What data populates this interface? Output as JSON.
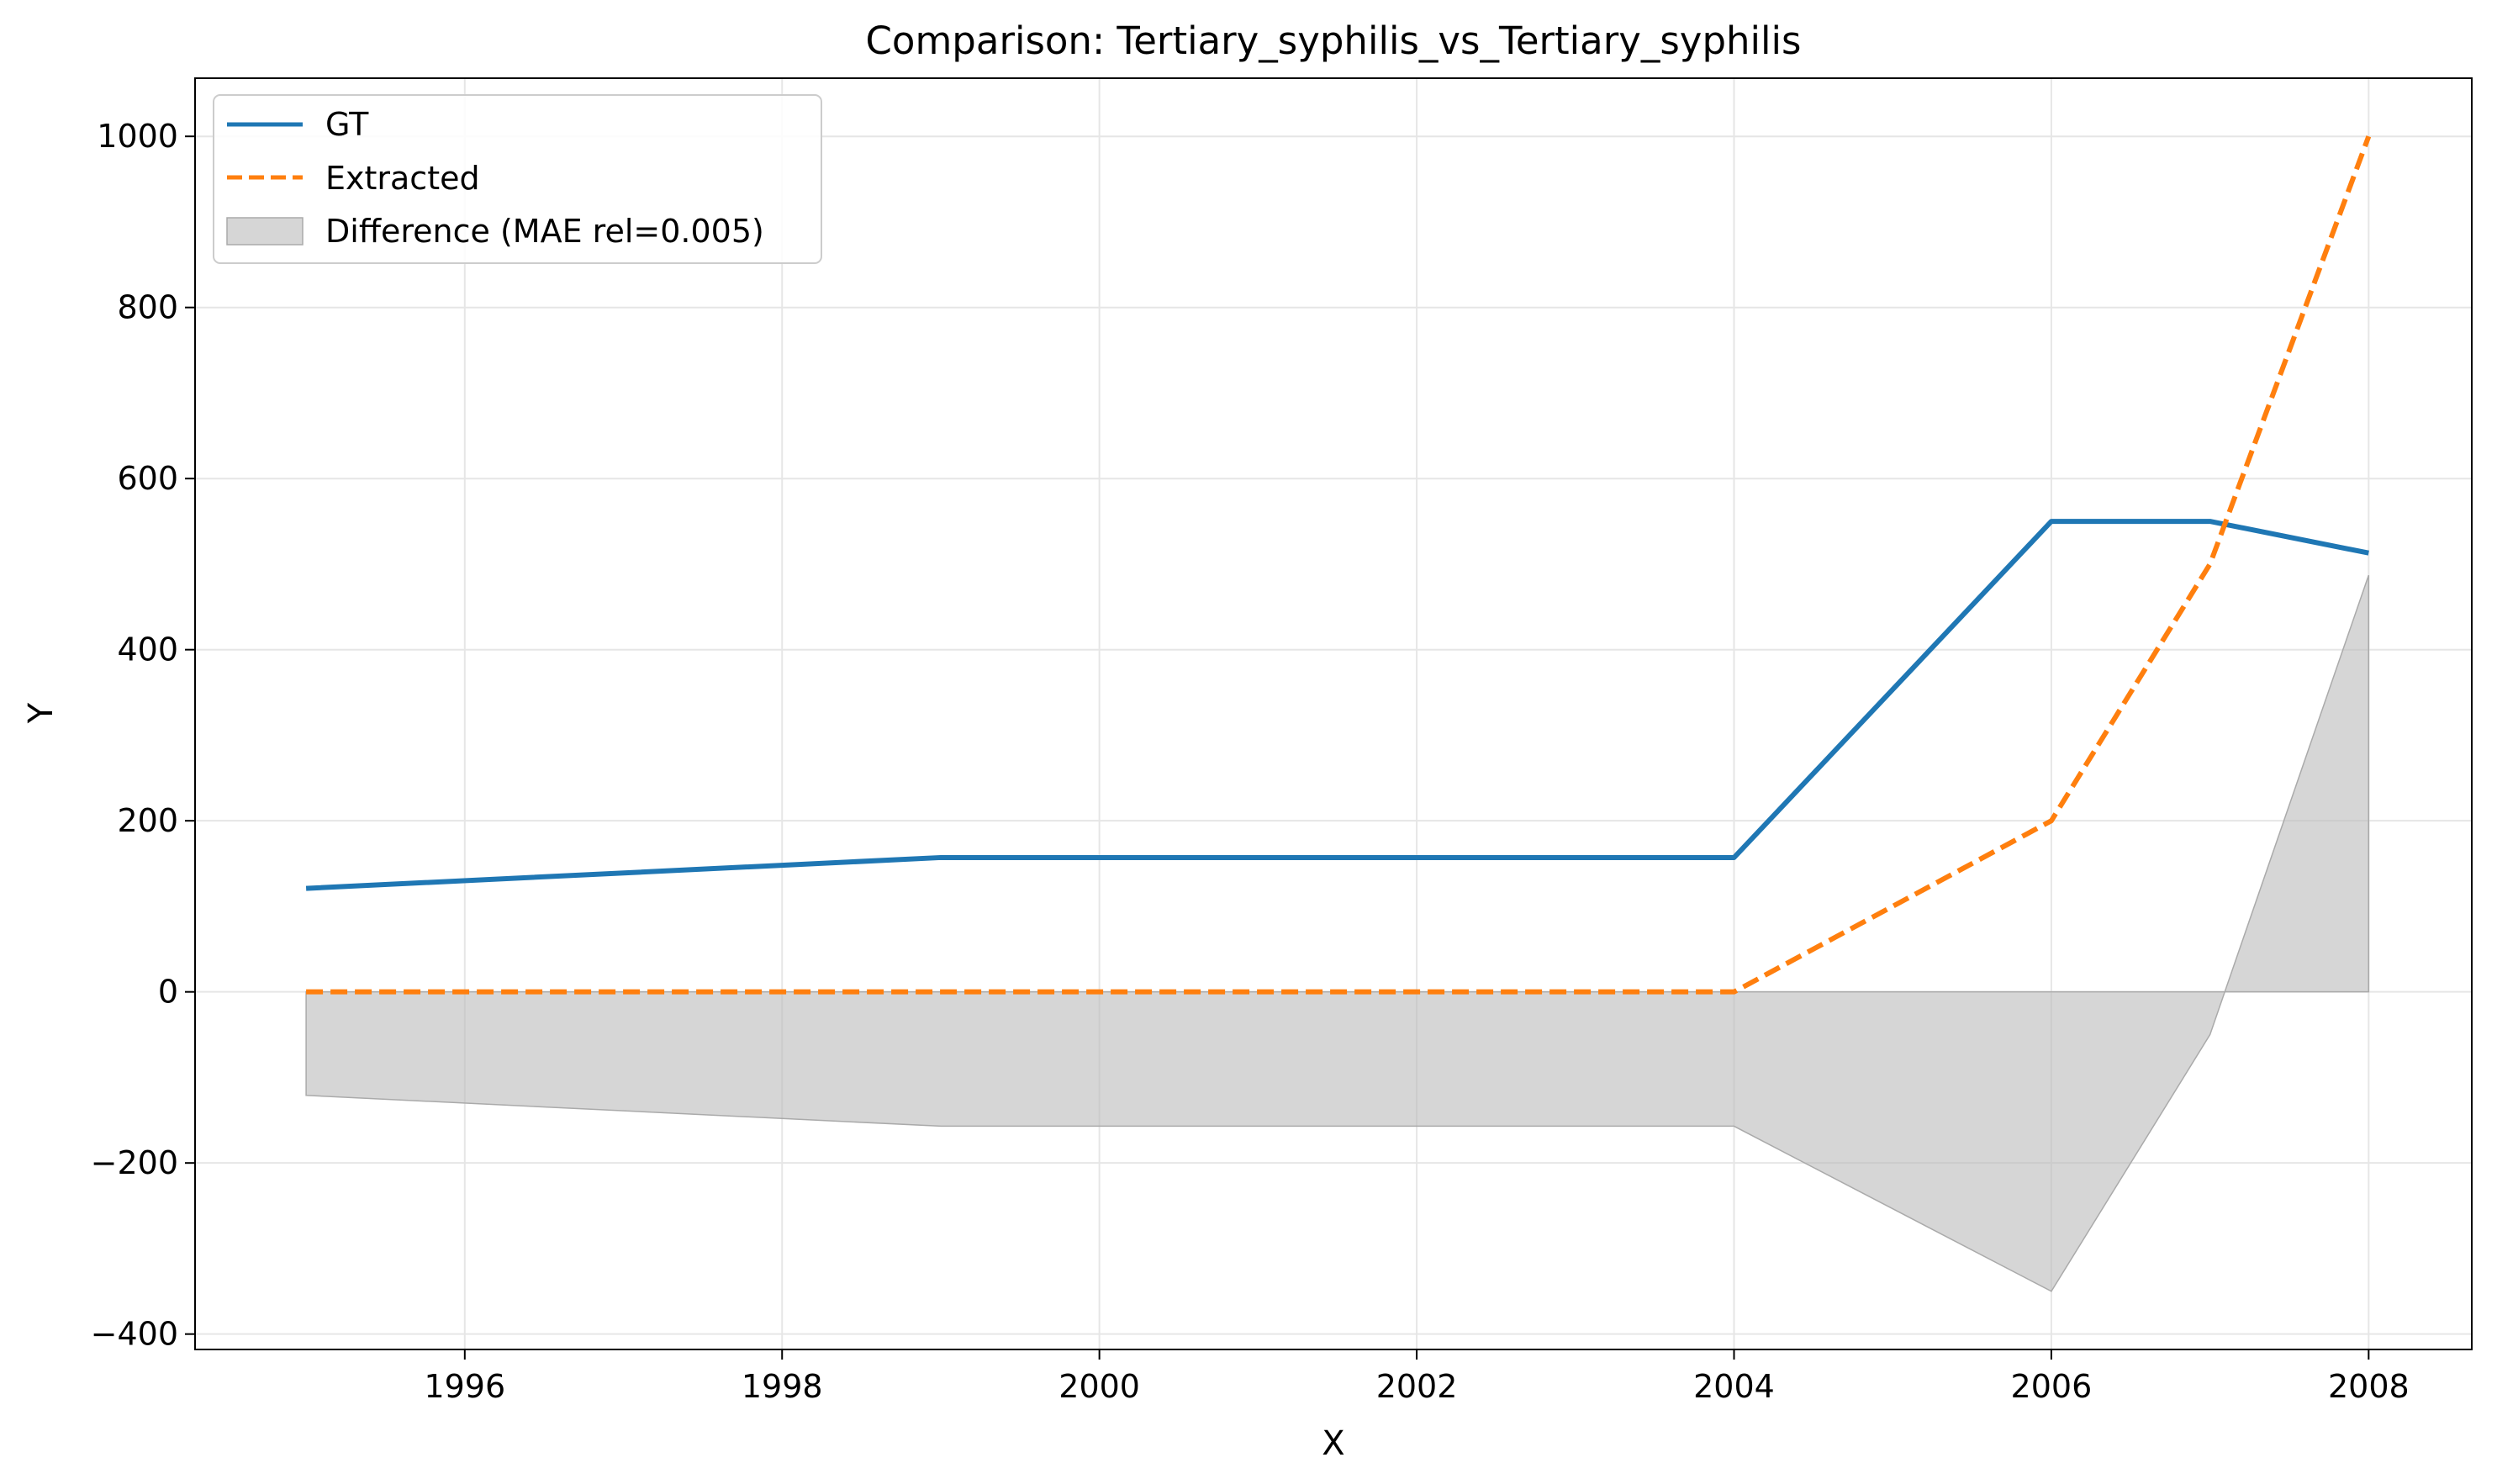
{
  "chart_data": {
    "type": "line",
    "title": "Comparison: Tertiary_syphilis_vs_Tertiary_syphilis",
    "xlabel": "X",
    "ylabel": "Y",
    "xlim": [
      1994.3,
      2008.65
    ],
    "ylim": [
      -418,
      1068
    ],
    "x_ticks": [
      1996,
      1998,
      2000,
      2002,
      2004,
      2006,
      2008
    ],
    "y_ticks": [
      -400,
      -200,
      0,
      200,
      400,
      600,
      800,
      1000
    ],
    "x_tick_labels": [
      "1996",
      "1998",
      "2000",
      "2002",
      "2004",
      "2006",
      "2008"
    ],
    "y_tick_labels": [
      "−400",
      "−200",
      "0",
      "200",
      "400",
      "600",
      "800",
      "1000"
    ],
    "grid": true,
    "legend_position": "top-left",
    "series": [
      {
        "name": "GT",
        "color": "#1f77b4",
        "style": "solid",
        "x": [
          1995,
          1999,
          2004,
          2006,
          2007,
          2008
        ],
        "values": [
          121,
          157,
          157,
          550,
          550,
          513
        ]
      },
      {
        "name": "Extracted",
        "color": "#ff7f0e",
        "style": "dashed",
        "x": [
          1995,
          1999,
          2004,
          2006,
          2007,
          2008
        ],
        "values": [
          0,
          0,
          0,
          200,
          500,
          1000
        ]
      }
    ],
    "difference": {
      "name": "Difference (MAE rel=0.005)",
      "color": "#bbbbbb",
      "x": [
        1995,
        1999,
        2004,
        2006,
        2007,
        2008
      ],
      "values": [
        -121,
        -157,
        -157,
        -350,
        -50,
        487
      ]
    }
  }
}
